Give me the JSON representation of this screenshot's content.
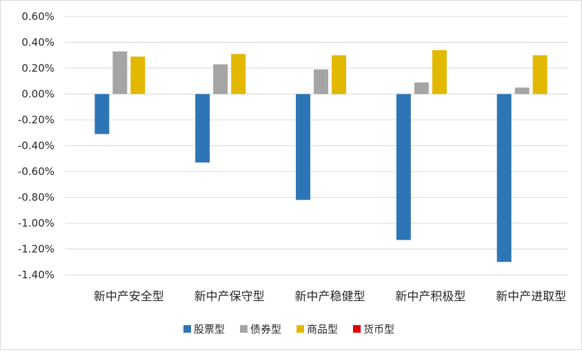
{
  "chart_data": {
    "type": "bar",
    "title": "",
    "xlabel": "",
    "ylabel": "",
    "categories": [
      "新中产安全型",
      "新中产保守型",
      "新中产稳健型",
      "新中产积极型",
      "新中产进取型"
    ],
    "series": [
      {
        "name": "股票型",
        "color": "#2e75b6",
        "values": [
          -0.31,
          -0.53,
          -0.82,
          -1.13,
          -1.3
        ]
      },
      {
        "name": "债券型",
        "color": "#a5a5a5",
        "values": [
          0.33,
          0.23,
          0.19,
          0.09,
          0.05
        ]
      },
      {
        "name": "商品型",
        "color": "#e2b800",
        "values": [
          0.29,
          0.31,
          0.3,
          0.34,
          0.3
        ]
      },
      {
        "name": "货币型",
        "color": "#e00000",
        "values": [
          0.0,
          0.0,
          0.0,
          0.0,
          0.0
        ]
      }
    ],
    "ylim": [
      -1.4,
      0.6
    ],
    "yticks": [
      "0.60%",
      "0.40%",
      "0.20%",
      "0.00%",
      "-0.20%",
      "-0.40%",
      "-0.60%",
      "-0.80%",
      "-1.00%",
      "-1.20%",
      "-1.40%"
    ],
    "ytick_values": [
      0.6,
      0.4,
      0.2,
      0.0,
      -0.2,
      -0.4,
      -0.6,
      -0.8,
      -1.0,
      -1.2,
      -1.4
    ],
    "grid": true,
    "legend_position": "bottom"
  }
}
